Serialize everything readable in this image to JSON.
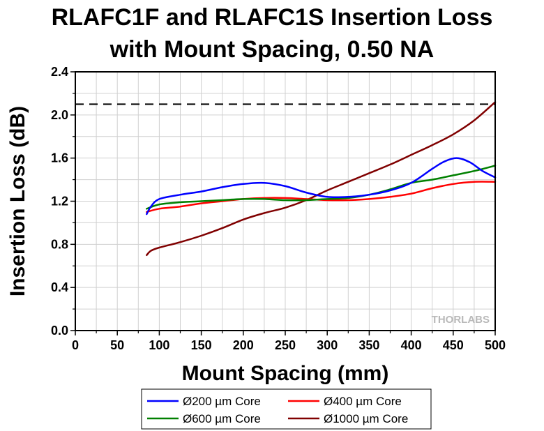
{
  "chart_data": {
    "type": "line",
    "title_line1": "RLAFC1F and RLAFC1S Insertion Loss",
    "title_line2": "with Mount Spacing, 0.50 NA",
    "xlabel": "Mount Spacing (mm)",
    "ylabel": "Insertion Loss (dB)",
    "xlim": [
      0,
      500
    ],
    "ylim": [
      0,
      2.4
    ],
    "x_ticks": [
      "0",
      "50",
      "100",
      "150",
      "200",
      "250",
      "300",
      "350",
      "400",
      "450",
      "500"
    ],
    "y_ticks": [
      "0.0",
      "0.4",
      "0.8",
      "1.2",
      "1.6",
      "2.0",
      "2.4"
    ],
    "grid": true,
    "legend_position": "bottom",
    "reference_line": {
      "y": 2.1,
      "style": "dashed",
      "color": "#000000"
    },
    "watermark": "THORLABS",
    "series": [
      {
        "name": "Ø200 µm Core",
        "color": "#0000ff",
        "x": [
          85,
          90,
          100,
          125,
          150,
          175,
          200,
          225,
          250,
          275,
          300,
          325,
          350,
          375,
          400,
          425,
          440,
          455,
          470,
          485,
          500
        ],
        "y": [
          1.08,
          1.15,
          1.22,
          1.26,
          1.29,
          1.33,
          1.36,
          1.37,
          1.34,
          1.28,
          1.24,
          1.24,
          1.26,
          1.3,
          1.37,
          1.5,
          1.57,
          1.6,
          1.56,
          1.48,
          1.42
        ]
      },
      {
        "name": "Ø400 µm Core",
        "color": "#ff0000",
        "x": [
          85,
          100,
          125,
          150,
          175,
          200,
          225,
          250,
          275,
          300,
          325,
          350,
          375,
          400,
          425,
          450,
          475,
          500
        ],
        "y": [
          1.1,
          1.13,
          1.15,
          1.18,
          1.2,
          1.22,
          1.23,
          1.23,
          1.22,
          1.21,
          1.21,
          1.22,
          1.24,
          1.27,
          1.32,
          1.36,
          1.38,
          1.38
        ]
      },
      {
        "name": "Ø600 µm Core",
        "color": "#008000",
        "x": [
          85,
          100,
          125,
          150,
          175,
          200,
          225,
          250,
          275,
          300,
          325,
          350,
          375,
          400,
          425,
          450,
          475,
          500
        ],
        "y": [
          1.13,
          1.17,
          1.19,
          1.2,
          1.21,
          1.22,
          1.22,
          1.21,
          1.21,
          1.22,
          1.23,
          1.26,
          1.31,
          1.37,
          1.4,
          1.44,
          1.48,
          1.53
        ]
      },
      {
        "name": "Ø1000 µm Core",
        "color": "#800000",
        "x": [
          85,
          90,
          100,
          125,
          150,
          175,
          200,
          225,
          250,
          275,
          300,
          325,
          350,
          375,
          400,
          425,
          450,
          475,
          500
        ],
        "y": [
          0.7,
          0.74,
          0.77,
          0.82,
          0.88,
          0.95,
          1.03,
          1.09,
          1.14,
          1.21,
          1.3,
          1.38,
          1.46,
          1.54,
          1.63,
          1.72,
          1.82,
          1.95,
          2.12
        ]
      }
    ]
  }
}
